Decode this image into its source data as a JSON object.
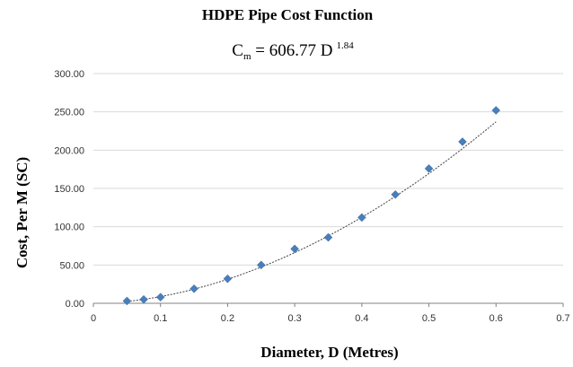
{
  "chart_data": {
    "type": "scatter",
    "title": "HDPE Pipe Cost Function",
    "equation": {
      "base": "C",
      "subscript": "m",
      "rhs": " = 606.77 D",
      "superscript": "1.84"
    },
    "xlabel": "Diameter, D (Metres)",
    "ylabel": "Cost, Per M (SC)",
    "xlim": [
      0,
      0.7
    ],
    "ylim": [
      0,
      300
    ],
    "xticks": [
      "0",
      "0.1",
      "0.2",
      "0.3",
      "0.4",
      "0.5",
      "0.6",
      "0.7"
    ],
    "yticks": [
      "0.00",
      "50.00",
      "100.00",
      "150.00",
      "200.00",
      "250.00",
      "300.00"
    ],
    "grid": "horizontal",
    "trendline": {
      "type": "power",
      "coefficient": 606.77,
      "exponent": 1.84,
      "style": "dotted"
    },
    "marker": "diamond",
    "color": "#4a7ebb",
    "points": [
      {
        "x": 0.05,
        "y": 3
      },
      {
        "x": 0.075,
        "y": 5
      },
      {
        "x": 0.1,
        "y": 8
      },
      {
        "x": 0.15,
        "y": 19
      },
      {
        "x": 0.2,
        "y": 32
      },
      {
        "x": 0.25,
        "y": 50
      },
      {
        "x": 0.3,
        "y": 71
      },
      {
        "x": 0.35,
        "y": 86
      },
      {
        "x": 0.4,
        "y": 112
      },
      {
        "x": 0.45,
        "y": 142
      },
      {
        "x": 0.5,
        "y": 176
      },
      {
        "x": 0.55,
        "y": 211
      },
      {
        "x": 0.6,
        "y": 252
      }
    ]
  }
}
